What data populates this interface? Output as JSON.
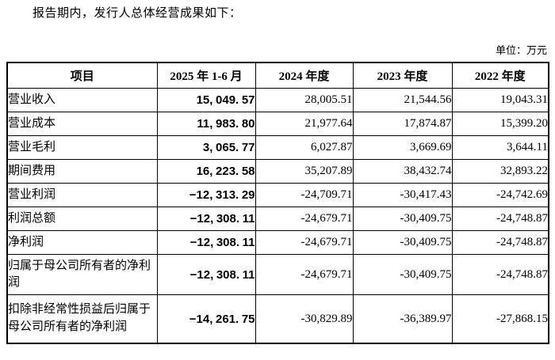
{
  "page": {
    "intro_text": "报告期内，发行人总体经营成果如下：",
    "unit_label": "单位：万元",
    "text_color": "#000000",
    "background_color": "#ffffff",
    "border_color": "#000000"
  },
  "table": {
    "headers": [
      "项目",
      "2025 年 1-6 月",
      "2024 年度",
      "2023 年度",
      "2022 年度"
    ],
    "rows": [
      {
        "label": "营业收入",
        "values": [
          "15,049.57",
          "28,005.51",
          "21,544.56",
          "19,043.31"
        ]
      },
      {
        "label": "营业成本",
        "values": [
          "11,983.80",
          "21,977.64",
          "17,874.87",
          "15,399.20"
        ]
      },
      {
        "label": "营业毛利",
        "values": [
          "3,065.77",
          "6,027.87",
          "3,669.69",
          "3,644.11"
        ]
      },
      {
        "label": "期间费用",
        "values": [
          "16,223.58",
          "35,207.89",
          "38,432.74",
          "32,893.22"
        ]
      },
      {
        "label": "营业利润",
        "values": [
          "-12,313.29",
          "-24,709.71",
          "-30,417.43",
          "-24,742.69"
        ]
      },
      {
        "label": "利润总额",
        "values": [
          "-12,308.11",
          "-24,679.71",
          "-30,409.75",
          "-24,748.87"
        ]
      },
      {
        "label": "净利润",
        "values": [
          "-12,308.11",
          "-24,679.71",
          "-30,409.75",
          "-24,748.87"
        ]
      },
      {
        "label": "归属于母公司所有者的净利润",
        "values": [
          "-12,308.11",
          "-24,679.71",
          "-30,409.75",
          "-24,748.87"
        ]
      },
      {
        "label": "扣除非经常性损益后归属于母公司所有者的净利润",
        "values": [
          "-14,261.75",
          "-30,829.89",
          "-36,389.97",
          "-27,868.15"
        ]
      }
    ]
  }
}
